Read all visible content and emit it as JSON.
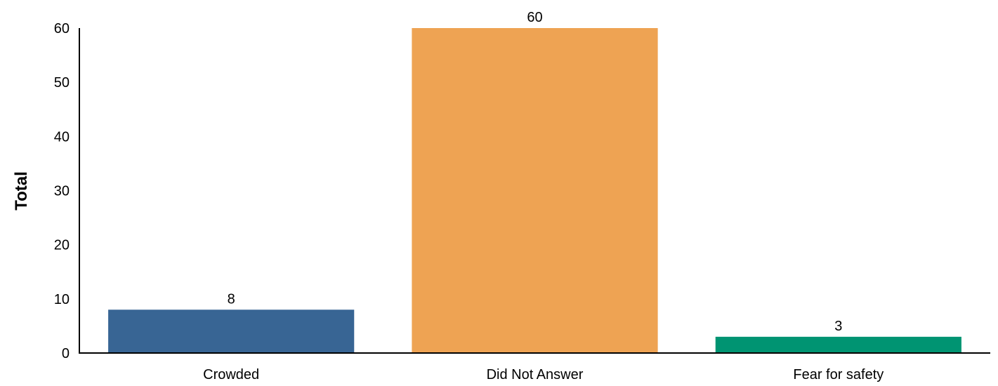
{
  "chart_data": {
    "type": "bar",
    "title": "",
    "xlabel": "",
    "ylabel": "Total",
    "categories": [
      "Crowded",
      "Did Not Answer",
      "Fear for safety"
    ],
    "values": [
      8,
      60,
      3
    ],
    "data_labels": [
      "8",
      "60",
      "3"
    ],
    "colors": [
      "#386594",
      "#eea353",
      "#009472"
    ],
    "ylim": [
      0,
      60
    ],
    "yticks": [
      0,
      10,
      20,
      30,
      40,
      50,
      60
    ],
    "grid": false,
    "legend": "none"
  }
}
